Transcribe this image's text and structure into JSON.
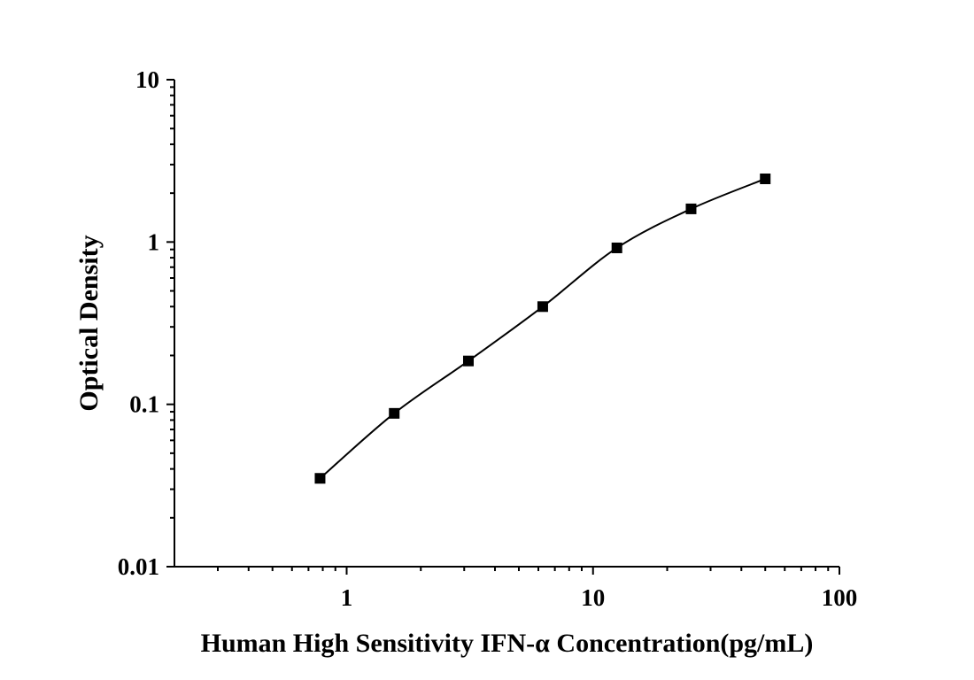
{
  "chart_data": {
    "type": "scatter",
    "xlabel": "Human High Sensitivity IFN-α Concentration(pg/mL)",
    "ylabel": "Optical Density",
    "x_scale": "log",
    "y_scale": "log",
    "xlim": [
      0.2,
      100
    ],
    "ylim": [
      0.01,
      10
    ],
    "x_ticks": [
      {
        "value": 1,
        "label": "1"
      },
      {
        "value": 10,
        "label": "10"
      },
      {
        "value": 100,
        "label": "100"
      }
    ],
    "y_ticks": [
      {
        "value": 0.01,
        "label": "0.01"
      },
      {
        "value": 0.1,
        "label": "0.1"
      },
      {
        "value": 1,
        "label": "1"
      },
      {
        "value": 10,
        "label": "10"
      }
    ],
    "grid": false,
    "series": [
      {
        "marker": "square",
        "fitted_curve": true,
        "color": "#000000",
        "x": [
          0.78,
          1.56,
          3.12,
          6.25,
          12.5,
          25,
          50
        ],
        "y": [
          0.035,
          0.088,
          0.185,
          0.4,
          0.92,
          1.6,
          2.45
        ]
      }
    ]
  }
}
